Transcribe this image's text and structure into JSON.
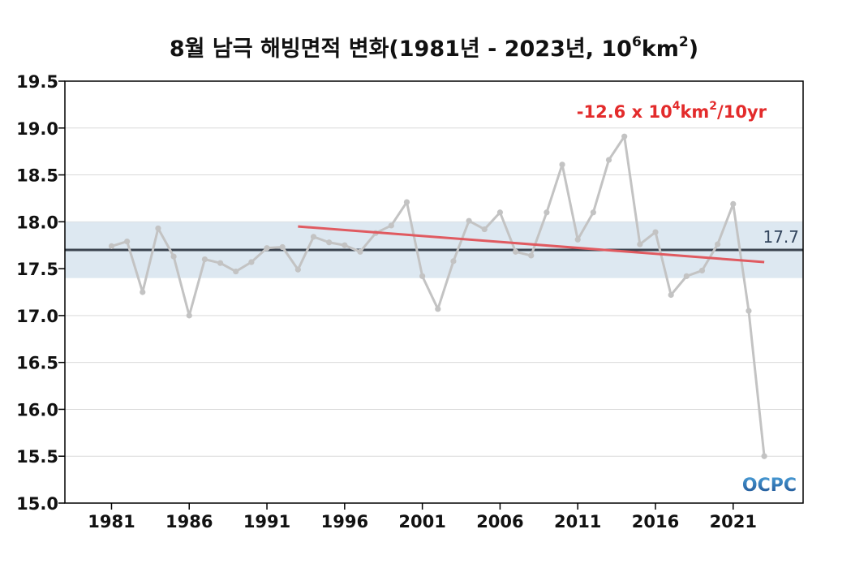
{
  "chart_data": {
    "type": "line",
    "title_main": "8월 남극 해빙면적 변화(1981년 - 2023년, 10",
    "title_sup1": "6",
    "title_mid": "km",
    "title_sup2": "2",
    "title_end": ")",
    "xlabel": "",
    "ylabel": "",
    "xlim": [
      1978,
      2025.5
    ],
    "ylim": [
      15.0,
      19.5
    ],
    "y_ticks": [
      "15.0",
      "15.5",
      "16.0",
      "16.5",
      "17.0",
      "17.5",
      "18.0",
      "18.5",
      "19.0",
      "19.5"
    ],
    "x_ticks": [
      "1981",
      "1986",
      "1991",
      "1996",
      "2001",
      "2006",
      "2011",
      "2016",
      "2021"
    ],
    "grid": true,
    "series": [
      {
        "color": "#c3c3c3",
        "x": [
          1981,
          1982,
          1983,
          1984,
          1985,
          1986,
          1987,
          1988,
          1989,
          1990,
          1991,
          1992,
          1993,
          1994,
          1995,
          1996,
          1997,
          1998,
          1999,
          2000,
          2001,
          2002,
          2003,
          2004,
          2005,
          2006,
          2007,
          2008,
          2009,
          2010,
          2011,
          2012,
          2013,
          2014,
          2015,
          2016,
          2017,
          2018,
          2019,
          2020,
          2021,
          2022,
          2023
        ],
        "values": [
          17.74,
          17.79,
          17.25,
          17.93,
          17.63,
          17.0,
          17.6,
          17.56,
          17.47,
          17.57,
          17.72,
          17.73,
          17.49,
          17.84,
          17.78,
          17.75,
          17.68,
          17.88,
          17.96,
          18.21,
          17.42,
          17.07,
          17.58,
          18.01,
          17.92,
          18.1,
          17.68,
          17.64,
          18.1,
          18.61,
          17.81,
          18.1,
          18.66,
          18.91,
          17.76,
          17.89,
          17.22,
          17.42,
          17.48,
          17.76,
          18.19,
          17.05,
          15.5
        ]
      }
    ],
    "mean": {
      "value": 17.7,
      "label": "17.7",
      "band": [
        17.4,
        18.0
      ],
      "color": "#3c4450",
      "band_color": "#dde8f1"
    },
    "trend": {
      "x": [
        1993,
        2023
      ],
      "y": [
        17.95,
        17.57
      ],
      "color": "#e05a60",
      "label_main": "-12.6 x 10",
      "label_sup1": "4",
      "label_mid": "km",
      "label_sup2": "2",
      "label_end": "/10yr"
    }
  },
  "logo": {
    "text": "OCPC",
    "color_top": "#4a9fd8",
    "color_bottom": "#1d4e8f"
  }
}
